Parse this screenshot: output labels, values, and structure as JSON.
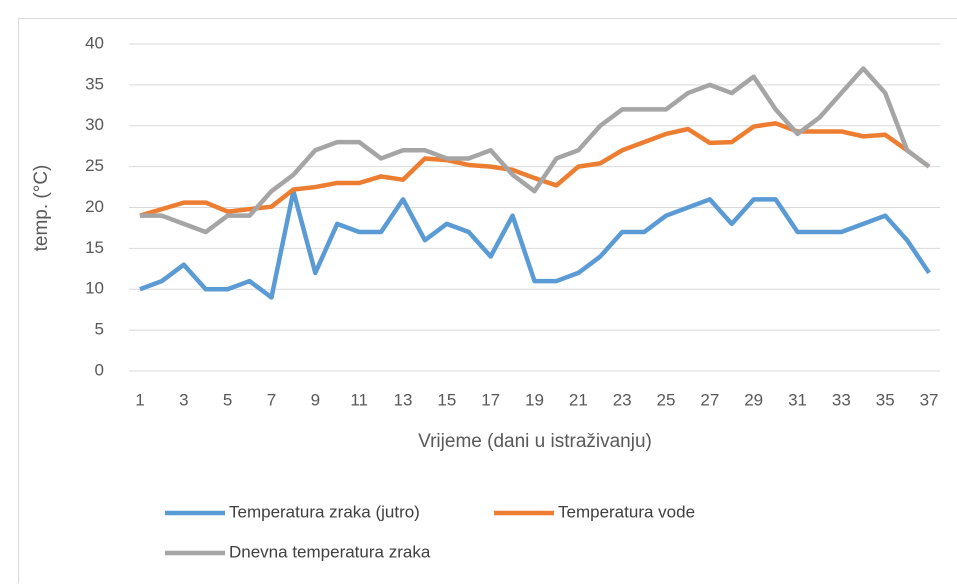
{
  "chart_data": {
    "type": "line",
    "y_label": "temp. (°C)",
    "x_label": "Vrijeme (dani u istraživanju)",
    "categories": [
      1,
      null,
      3,
      null,
      5,
      null,
      7,
      null,
      9,
      null,
      11,
      null,
      13,
      null,
      15,
      null,
      17,
      null,
      19,
      null,
      21,
      null,
      23,
      null,
      25,
      null,
      27,
      null,
      29,
      null,
      31,
      null,
      33,
      null,
      35,
      null,
      37
    ],
    "ylim": [
      0,
      40
    ],
    "yticks": [
      0,
      5,
      10,
      15,
      20,
      25,
      30,
      35,
      40
    ],
    "grid": true,
    "legend": "bottom",
    "series": [
      {
        "name": "Temperatura zraka (jutro)",
        "color": "#5b9bd5",
        "values": [
          10,
          11,
          13,
          10,
          10,
          11,
          9,
          22,
          12,
          18,
          17,
          17,
          21,
          16,
          18,
          17,
          14,
          19,
          11,
          11,
          12,
          14,
          17,
          17,
          19,
          20,
          21,
          18,
          21,
          21,
          17,
          17,
          17,
          18,
          19,
          16,
          12
        ]
      },
      {
        "name": "Temperatura vode",
        "color": "#ed7d31",
        "values": [
          19,
          19.8,
          20.6,
          20.6,
          19.5,
          19.8,
          20.1,
          22.2,
          22.5,
          23,
          23,
          23.8,
          23.4,
          26,
          25.8,
          25.2,
          25,
          24.6,
          23.6,
          22.7,
          25,
          25.4,
          27,
          28,
          29,
          29.6,
          27.9,
          28,
          29.9,
          30.3,
          29.3,
          29.3,
          29.3,
          28.7,
          28.9,
          27,
          25
        ]
      },
      {
        "name": "Dnevna temperatura zraka",
        "color": "#a5a5a5",
        "values": [
          19,
          19,
          18,
          17,
          19,
          19,
          22,
          24,
          27,
          28,
          28,
          26,
          27,
          27,
          26,
          26,
          27,
          24,
          22,
          26,
          27,
          30,
          32,
          32,
          32,
          34,
          35,
          34,
          36,
          32,
          29,
          31,
          34,
          37,
          34,
          27,
          25
        ]
      }
    ]
  }
}
